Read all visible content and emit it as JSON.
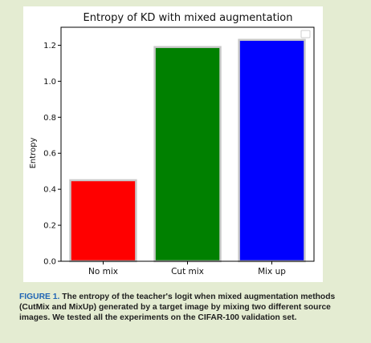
{
  "chart_data": {
    "type": "bar",
    "title": "Entropy of KD with mixed augmentation",
    "xlabel": "",
    "ylabel": "Entropy",
    "categories": [
      "No mix",
      "Cut mix",
      "Mix up"
    ],
    "values": [
      0.45,
      1.19,
      1.23
    ],
    "colors": [
      "#ff0000",
      "#008000",
      "#0000ff"
    ],
    "ylim": [
      0,
      1.3
    ],
    "yticks": [
      "0.0",
      "0.2",
      "0.4",
      "0.6",
      "0.8",
      "1.0",
      "1.2"
    ],
    "grid": false,
    "legend": "top-right"
  },
  "caption": {
    "label": "FIGURE 1.",
    "text": "The entropy of the teacher's logit when mixed augmentation methods (CutMix and MixUp) generated by a target image by mixing two different source images. We tested all the experiments on the CIFAR-100 validation set."
  }
}
